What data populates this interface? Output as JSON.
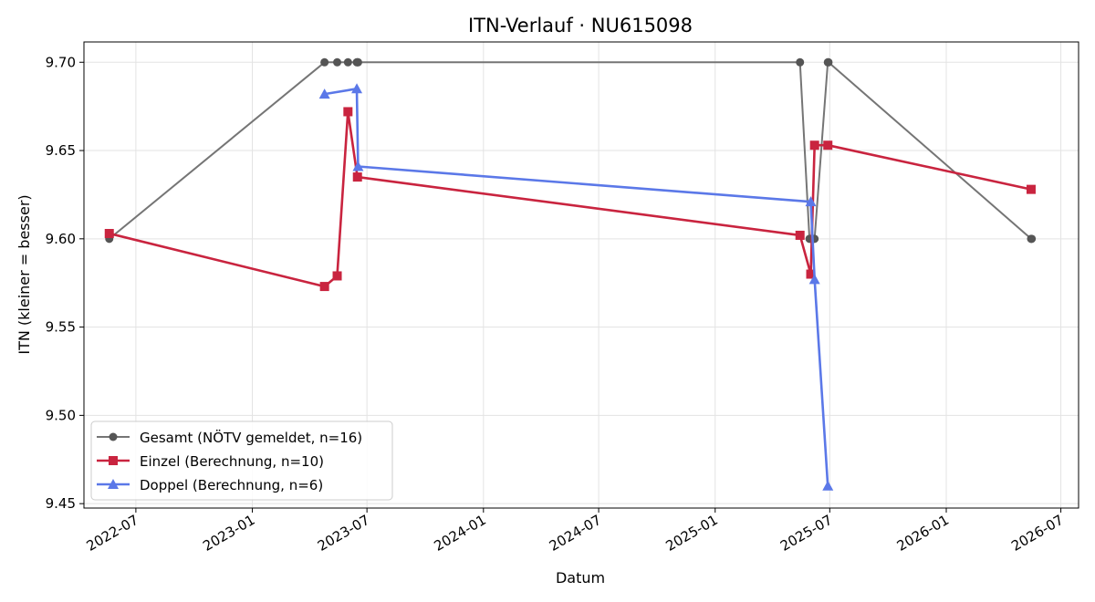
{
  "chart_data": {
    "type": "line",
    "title": "ITN-Verlauf · NU615098",
    "xlabel": "Datum",
    "ylabel": "ITN  (kleiner = besser)",
    "x_type": "date",
    "xlim": [
      "2022-04-10",
      "2026-07-29"
    ],
    "ylim": [
      9.4475,
      9.7115
    ],
    "x_ticks": [
      {
        "date": "2022-07-01",
        "label": "2022-07"
      },
      {
        "date": "2023-01-01",
        "label": "2023-01"
      },
      {
        "date": "2023-07-01",
        "label": "2023-07"
      },
      {
        "date": "2024-01-01",
        "label": "2024-01"
      },
      {
        "date": "2024-07-01",
        "label": "2024-07"
      },
      {
        "date": "2025-01-01",
        "label": "2025-01"
      },
      {
        "date": "2025-07-01",
        "label": "2025-07"
      },
      {
        "date": "2026-01-01",
        "label": "2026-01"
      },
      {
        "date": "2026-07-01",
        "label": "2026-07"
      }
    ],
    "y_ticks": [
      {
        "value": 9.45,
        "label": "9.45"
      },
      {
        "value": 9.5,
        "label": "9.50"
      },
      {
        "value": 9.55,
        "label": "9.55"
      },
      {
        "value": 9.6,
        "label": "9.60"
      },
      {
        "value": 9.65,
        "label": "9.65"
      },
      {
        "value": 9.7,
        "label": "9.70"
      }
    ],
    "grid": true,
    "legend_position": "lower-left",
    "series": [
      {
        "name": "Gesamt (NÖTV gemeldet, n=16)",
        "color": "#757575",
        "marker_color": "#555555",
        "marker": "circle",
        "points": [
          {
            "x": "2022-05-20",
            "y": 9.6
          },
          {
            "x": "2023-04-25",
            "y": 9.7
          },
          {
            "x": "2023-05-15",
            "y": 9.7
          },
          {
            "x": "2023-06-01",
            "y": 9.7
          },
          {
            "x": "2023-06-15",
            "y": 9.7
          },
          {
            "x": "2023-06-16",
            "y": 9.7
          },
          {
            "x": "2023-06-17",
            "y": 9.7
          },
          {
            "x": "2025-05-15",
            "y": 9.7
          },
          {
            "x": "2025-05-30",
            "y": 9.6
          },
          {
            "x": "2025-06-01",
            "y": 9.6
          },
          {
            "x": "2025-06-05",
            "y": 9.6
          },
          {
            "x": "2025-06-07",
            "y": 9.6
          },
          {
            "x": "2025-06-28",
            "y": 9.7
          },
          {
            "x": "2025-06-29",
            "y": 9.7
          },
          {
            "x": "2026-05-15",
            "y": 9.6
          },
          {
            "x": "2026-05-16",
            "y": 9.6
          }
        ]
      },
      {
        "name": "Einzel (Berechnung, n=10)",
        "color": "#c9243f",
        "marker_color": "#c9243f",
        "marker": "square",
        "points": [
          {
            "x": "2022-05-20",
            "y": 9.603
          },
          {
            "x": "2023-04-25",
            "y": 9.573
          },
          {
            "x": "2023-05-15",
            "y": 9.579
          },
          {
            "x": "2023-06-01",
            "y": 9.672
          },
          {
            "x": "2023-06-16",
            "y": 9.635
          },
          {
            "x": "2025-05-15",
            "y": 9.602
          },
          {
            "x": "2025-06-01",
            "y": 9.58
          },
          {
            "x": "2025-06-07",
            "y": 9.653
          },
          {
            "x": "2025-06-28",
            "y": 9.653
          },
          {
            "x": "2026-05-15",
            "y": 9.628
          }
        ]
      },
      {
        "name": "Doppel (Berechnung, n=6)",
        "color": "#5b78e8",
        "marker_color": "#5b78e8",
        "marker": "triangle",
        "points": [
          {
            "x": "2023-04-25",
            "y": 9.682
          },
          {
            "x": "2023-06-15",
            "y": 9.685
          },
          {
            "x": "2023-06-17",
            "y": 9.641
          },
          {
            "x": "2025-06-01",
            "y": 9.621
          },
          {
            "x": "2025-06-07",
            "y": 9.577
          },
          {
            "x": "2025-06-28",
            "y": 9.46
          }
        ]
      }
    ]
  }
}
